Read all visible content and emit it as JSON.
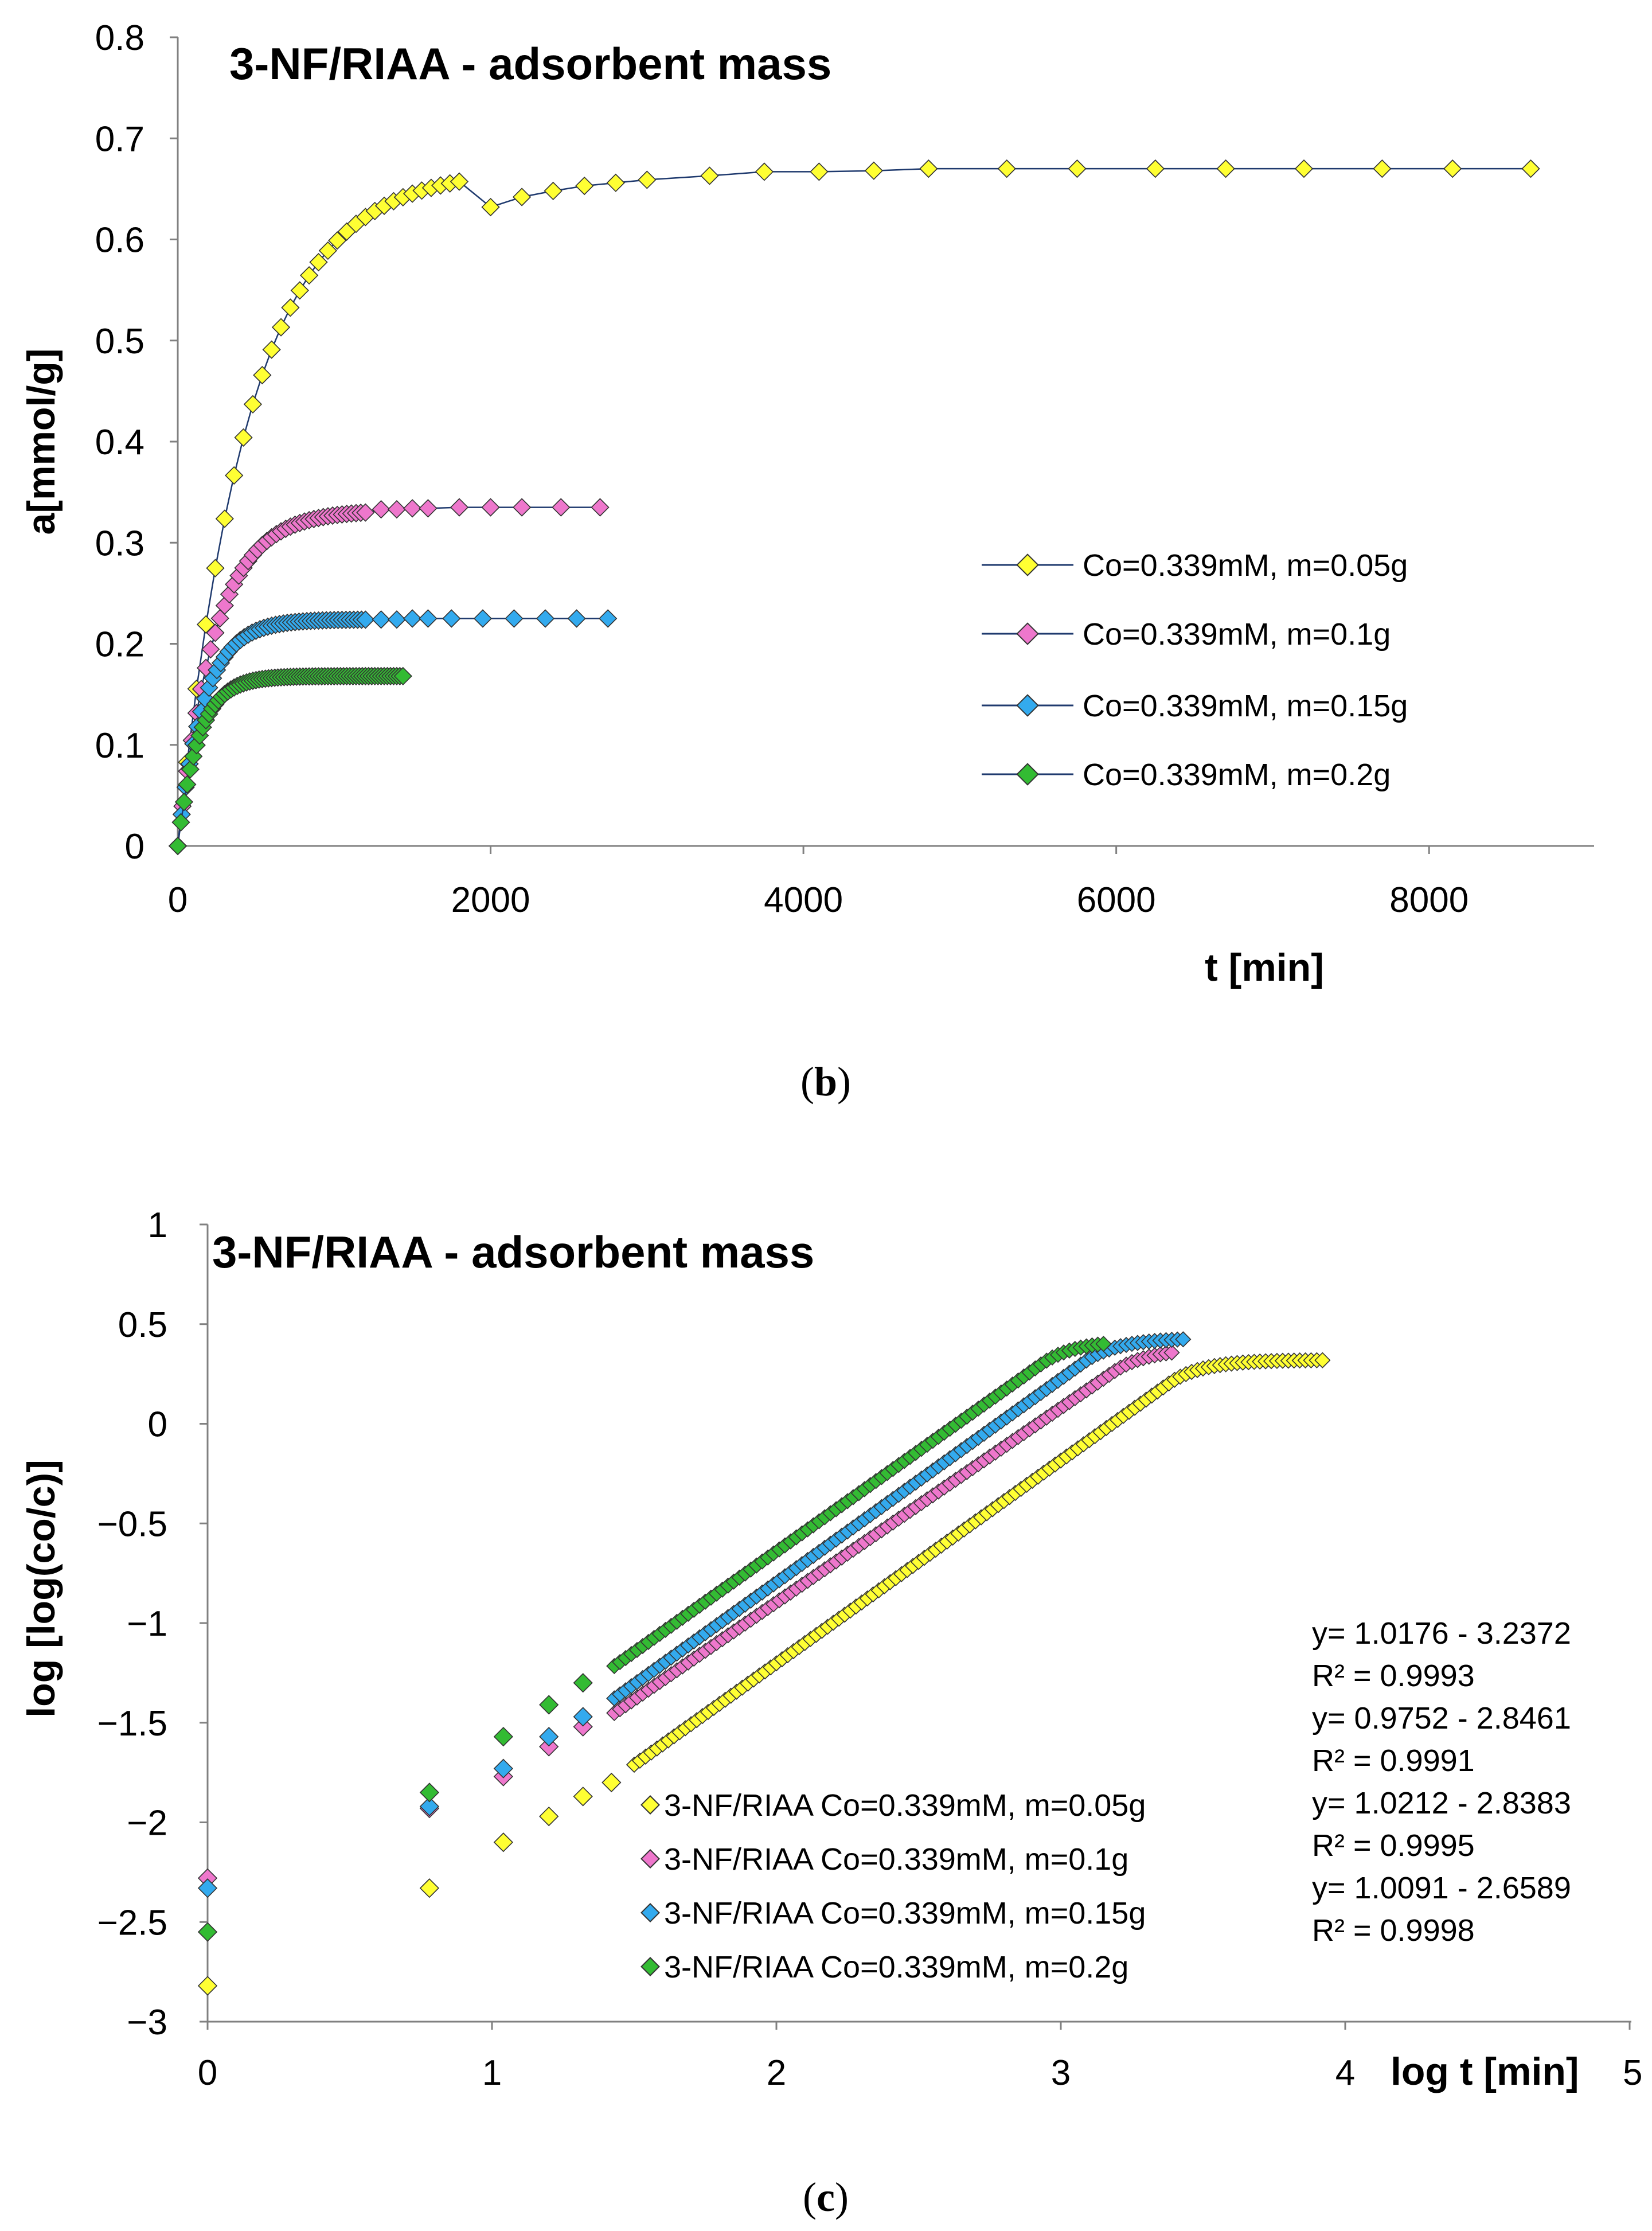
{
  "colors": {
    "yellow": "#FFFF33",
    "pink": "#EE77CC",
    "blue": "#33AAEE",
    "green": "#33BB33",
    "line": "#1F3A6E",
    "marker_edge": "#333333"
  },
  "chart_data": [
    {
      "id": "b",
      "type": "line",
      "title": "3-NF/RIAA - adsorbent mass",
      "xlabel": "t [min]",
      "ylabel": "a[mmol/g]",
      "xlim": [
        0,
        9000
      ],
      "ylim": [
        0,
        0.8
      ],
      "xticks": [
        "0",
        "2000",
        "4000",
        "6000",
        "8000"
      ],
      "xtick_values": [
        0,
        2000,
        4000,
        6000,
        8000
      ],
      "yticks": [
        "0",
        "0.1",
        "0.2",
        "0.3",
        "0.4",
        "0.5",
        "0.6",
        "0.7",
        "0.8"
      ],
      "ytick_values": [
        0,
        0.1,
        0.2,
        0.3,
        0.4,
        0.5,
        0.6,
        0.7,
        0.8
      ],
      "legend_position": "right",
      "caption_letter": "b",
      "series": [
        {
          "name": "Co=0.339mM, m=0.05g",
          "color": "yellow",
          "model": {
            "amax": 0.67,
            "k": 0.0022,
            "t_end": 1800,
            "dt": 60
          },
          "x": [
            2000,
            2200,
            2400,
            2600,
            2800,
            3000,
            3400,
            3750,
            4100,
            4450,
            4800,
            5300,
            5750,
            6250,
            6700,
            7200,
            7700,
            8150,
            8650
          ],
          "y": [
            0.632,
            0.642,
            0.648,
            0.653,
            0.656,
            0.659,
            0.663,
            0.667,
            0.667,
            0.668,
            0.67,
            0.67,
            0.67,
            0.67,
            0.67,
            0.67,
            0.67,
            0.67,
            0.67
          ]
        },
        {
          "name": "Co=0.339mM, m=0.1g",
          "color": "pink",
          "model": {
            "amax": 0.332,
            "k": 0.0042,
            "t_end": 1200,
            "dt": 30
          },
          "x": [
            1300,
            1400,
            1500,
            1600,
            1800,
            2000,
            2200,
            2450,
            2700
          ],
          "y": [
            0.333,
            0.333,
            0.334,
            0.334,
            0.335,
            0.335,
            0.335,
            0.335,
            0.335
          ]
        },
        {
          "name": "Co=0.339mM, m=0.15g",
          "color": "blue",
          "model": {
            "amax": 0.224,
            "k": 0.006,
            "t_end": 1200,
            "dt": 25
          },
          "x": [
            1300,
            1400,
            1500,
            1600,
            1750,
            1950,
            2150,
            2350,
            2550,
            2750
          ],
          "y": [
            0.224,
            0.224,
            0.225,
            0.225,
            0.225,
            0.225,
            0.225,
            0.225,
            0.225,
            0.225
          ]
        },
        {
          "name": "Co=0.339mM, m=0.2g",
          "color": "green",
          "model": {
            "amax": 0.168,
            "k": 0.0075,
            "t_end": 1440,
            "dt": 20
          },
          "x": [],
          "y": []
        }
      ]
    },
    {
      "id": "c",
      "type": "scatter",
      "title": "3-NF/RIAA - adsorbent mass",
      "xlabel": "log t [min]",
      "ylabel": "log [log(co/c)]",
      "xlim": [
        0,
        5
      ],
      "ylim": [
        -3,
        1
      ],
      "xticks": [
        "0",
        "1",
        "2",
        "3",
        "4",
        "5"
      ],
      "xtick_values": [
        0,
        1,
        2,
        3,
        4,
        5
      ],
      "yticks": [
        "−3",
        "−2.5",
        "−2",
        "−1.5",
        "−1",
        "−0.5",
        "0",
        "0.5",
        "1"
      ],
      "ytick_values": [
        -3,
        -2.5,
        -2,
        -1.5,
        -1,
        -0.5,
        0,
        0.5,
        1
      ],
      "legend_position": "bottom-center",
      "caption_letter": "c",
      "equations": [
        "y= 1.0176 - 3.2372",
        "R² = 0.9993",
        "y= 0.9752 - 2.8461",
        "R² = 0.9991",
        "y= 1.0212 - 2.8383",
        "R² = 0.9995",
        "y= 1.0091 - 2.6589",
        "R² = 0.9998"
      ],
      "series": [
        {
          "name": "3-NF/RIAA Co=0.339mM, m=0.05g",
          "color": "yellow",
          "slope": 1.0176,
          "intercept": -3.2372,
          "plateau": 0.32,
          "x": [
            0,
            0.78,
            1.04,
            1.2,
            1.32,
            1.42
          ],
          "y": [
            -2.82,
            -2.33,
            -2.1,
            -1.97,
            -1.87,
            -1.8
          ],
          "dense": {
            "x_start": 1.5,
            "x_end": 3.93,
            "step": 0.02
          }
        },
        {
          "name": "3-NF/RIAA Co=0.339mM, m=0.1g",
          "color": "pink",
          "slope": 0.9752,
          "intercept": -2.8461,
          "plateau": 0.38,
          "x": [
            0,
            0.78,
            1.04,
            1.2,
            1.32
          ],
          "y": [
            -2.28,
            -1.93,
            -1.77,
            -1.62,
            -1.52
          ],
          "dense": {
            "x_start": 1.43,
            "x_end": 3.4,
            "step": 0.02
          }
        },
        {
          "name": "3-NF/RIAA Co=0.339mM, m=0.15g",
          "color": "blue",
          "slope": 1.0212,
          "intercept": -2.8383,
          "plateau": 0.43,
          "x": [
            0,
            0.78,
            1.04,
            1.2,
            1.32
          ],
          "y": [
            -2.33,
            -1.92,
            -1.73,
            -1.57,
            -1.47
          ],
          "dense": {
            "x_start": 1.43,
            "x_end": 3.44,
            "step": 0.02
          }
        },
        {
          "name": "3-NF/RIAA Co=0.339mM, m=0.2g",
          "color": "green",
          "slope": 1.0091,
          "intercept": -2.6589,
          "plateau": 0.42,
          "x": [
            0,
            0.78,
            1.04,
            1.2,
            1.32
          ],
          "y": [
            -2.55,
            -1.85,
            -1.57,
            -1.41,
            -1.3
          ],
          "dense": {
            "x_start": 1.43,
            "x_end": 3.16,
            "step": 0.02
          }
        }
      ]
    }
  ]
}
